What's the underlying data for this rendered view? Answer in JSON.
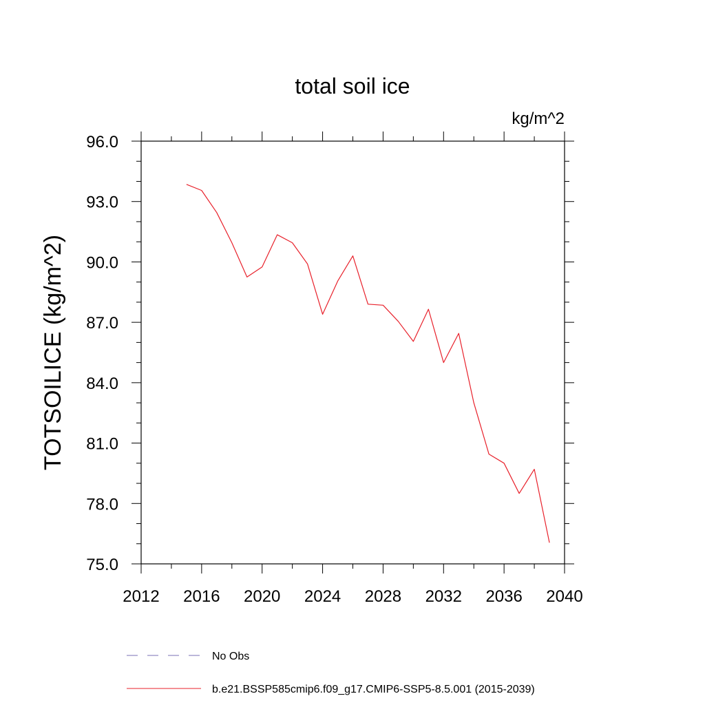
{
  "chart_data": {
    "type": "line",
    "title": "total soil ice",
    "units": "kg/m^2",
    "xlabel": "",
    "ylabel": "TOTSOILICE  (kg/m^2)",
    "xlim": [
      2012,
      2040
    ],
    "ylim": [
      75.0,
      96.0
    ],
    "xticks": [
      2012,
      2016,
      2020,
      2024,
      2028,
      2032,
      2036,
      2040
    ],
    "yticks": [
      75.0,
      78.0,
      81.0,
      84.0,
      87.0,
      90.0,
      93.0,
      96.0
    ],
    "grid": false,
    "legend_position": "bottom",
    "series": [
      {
        "name": "b.e21.BSSP585cmip6.f09_g17.CMIP6-SSP5-8.5.001 (2015-2039)",
        "color": "#e8202a",
        "style": "solid",
        "x": [
          2015,
          2016,
          2017,
          2018,
          2019,
          2020,
          2021,
          2022,
          2023,
          2024,
          2025,
          2026,
          2027,
          2028,
          2029,
          2030,
          2031,
          2032,
          2033,
          2034,
          2035,
          2036,
          2037,
          2038,
          2039
        ],
        "y": [
          93.85,
          93.55,
          92.45,
          90.95,
          89.25,
          89.75,
          91.35,
          90.95,
          89.9,
          87.4,
          89.05,
          90.3,
          87.9,
          87.85,
          87.05,
          86.05,
          87.65,
          85.0,
          86.45,
          83.0,
          80.45,
          80.0,
          78.5,
          79.7,
          76.05
        ]
      }
    ],
    "legend": [
      {
        "label": "No Obs",
        "color": "#7a6fb5",
        "style": "dashed"
      },
      {
        "label": "b.e21.BSSP585cmip6.f09_g17.CMIP6-SSP5-8.5.001 (2015-2039)",
        "color": "#e8202a",
        "style": "solid"
      }
    ]
  }
}
